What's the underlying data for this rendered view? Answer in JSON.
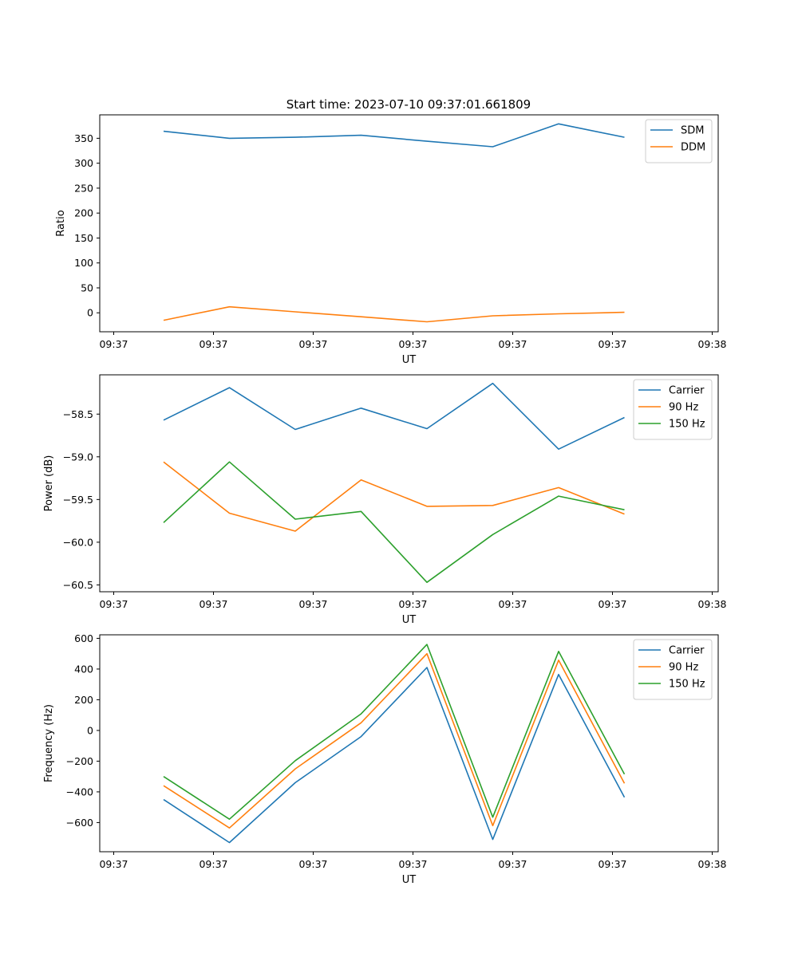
{
  "figure_title": "Start time: 2023-07-10 09:37:01.661809",
  "colors": {
    "blue": "#1f77b4",
    "orange": "#ff7f0e",
    "green": "#2ca02c"
  },
  "chart_data": [
    {
      "type": "line",
      "xlabel": "UT",
      "ylabel": "Ratio",
      "x": [
        0.25,
        0.58,
        0.91,
        1.24,
        1.57,
        1.9,
        2.23,
        2.56
      ],
      "xlim": [
        -0.07,
        3.03
      ],
      "xticks": [
        0,
        0.5,
        1,
        1.5,
        2,
        2.5,
        3
      ],
      "xtick_labels": [
        "09:37",
        "09:37",
        "09:37",
        "09:37",
        "09:37",
        "09:37",
        "09:38"
      ],
      "ylim": [
        -38,
        397
      ],
      "yticks": [
        0,
        50,
        100,
        150,
        200,
        250,
        300,
        350
      ],
      "ytick_labels": [
        "0",
        "50",
        "100",
        "150",
        "200",
        "250",
        "300",
        "350"
      ],
      "legend_position": "top-right",
      "series": [
        {
          "name": "SDM",
          "color": "blue",
          "values": [
            364,
            350,
            352,
            356,
            344,
            333,
            379,
            352
          ]
        },
        {
          "name": "DDM",
          "color": "orange",
          "values": [
            -15,
            12,
            2,
            -8,
            -18,
            -6,
            -2,
            1
          ]
        }
      ]
    },
    {
      "type": "line",
      "xlabel": "UT",
      "ylabel": "Power (dB)",
      "x": [
        0.25,
        0.58,
        0.91,
        1.24,
        1.57,
        1.9,
        2.23,
        2.56
      ],
      "xlim": [
        -0.07,
        3.03
      ],
      "xticks": [
        0,
        0.5,
        1,
        1.5,
        2,
        2.5,
        3
      ],
      "xtick_labels": [
        "09:37",
        "09:37",
        "09:37",
        "09:37",
        "09:37",
        "09:37",
        "09:38"
      ],
      "ylim": [
        -60.58,
        -58.04
      ],
      "yticks": [
        -58.5,
        -59.0,
        -59.5,
        -60.0,
        -60.5
      ],
      "ytick_labels": [
        "−58.5",
        "−59.0",
        "−59.5",
        "−60.0",
        "−60.5"
      ],
      "legend_position": "top-right",
      "series": [
        {
          "name": "Carrier",
          "color": "blue",
          "values": [
            -58.57,
            -58.19,
            -58.68,
            -58.43,
            -58.67,
            -58.14,
            -58.91,
            -58.54
          ]
        },
        {
          "name": "90 Hz",
          "color": "orange",
          "values": [
            -59.06,
            -59.66,
            -59.87,
            -59.27,
            -59.58,
            -59.57,
            -59.36,
            -59.67
          ]
        },
        {
          "name": "150 Hz",
          "color": "green",
          "values": [
            -59.77,
            -59.06,
            -59.73,
            -59.64,
            -60.47,
            -59.91,
            -59.46,
            -59.62
          ]
        }
      ]
    },
    {
      "type": "line",
      "xlabel": "UT",
      "ylabel": "Frequency (Hz)",
      "x": [
        0.25,
        0.58,
        0.91,
        1.24,
        1.57,
        1.9,
        2.23,
        2.56
      ],
      "xlim": [
        -0.07,
        3.03
      ],
      "xticks": [
        0,
        0.5,
        1,
        1.5,
        2,
        2.5,
        3
      ],
      "xtick_labels": [
        "09:37",
        "09:37",
        "09:37",
        "09:37",
        "09:37",
        "09:37",
        "09:38"
      ],
      "ylim": [
        -790,
        623
      ],
      "yticks": [
        600,
        400,
        200,
        0,
        -200,
        -400,
        -600
      ],
      "ytick_labels": [
        "600",
        "400",
        "200",
        "0",
        "−200",
        "−400",
        "−600"
      ],
      "legend_position": "top-right",
      "series": [
        {
          "name": "Carrier",
          "color": "blue",
          "values": [
            -450,
            -730,
            -340,
            -40,
            410,
            -710,
            365,
            -435
          ]
        },
        {
          "name": "90 Hz",
          "color": "orange",
          "values": [
            -360,
            -635,
            -250,
            50,
            500,
            -620,
            458,
            -345
          ]
        },
        {
          "name": "150 Hz",
          "color": "green",
          "values": [
            -300,
            -578,
            -197,
            108,
            560,
            -565,
            515,
            -285
          ]
        }
      ]
    }
  ]
}
